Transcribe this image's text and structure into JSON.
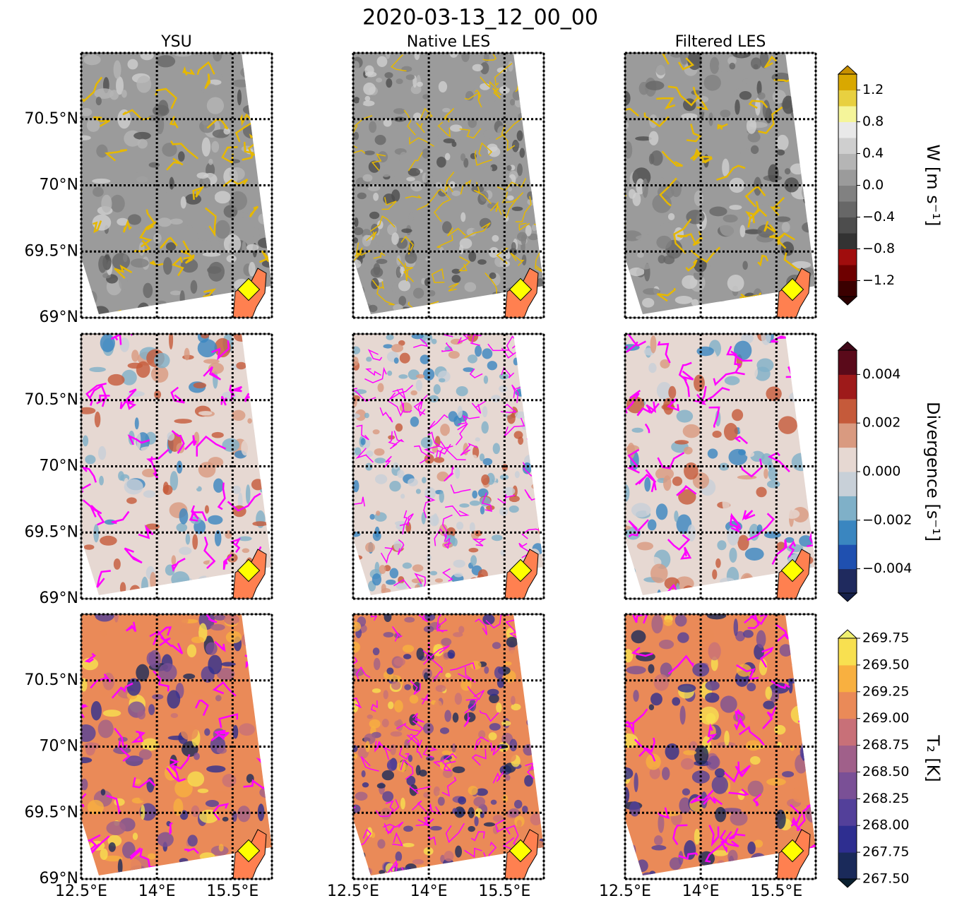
{
  "title": "2020-03-13_12_00_00",
  "columns": [
    "YSU",
    "Native LES",
    "Filtered LES"
  ],
  "map": {
    "xlim": [
      12.5,
      16.28
    ],
    "ylim": [
      69,
      71
    ],
    "xticks": [
      {
        "value": 12.5,
        "label": "12.5°E"
      },
      {
        "value": 14,
        "label": "14°E"
      },
      {
        "value": 15.5,
        "label": "15.5°E"
      }
    ],
    "yticks": [
      {
        "value": 69,
        "label": "69°N"
      },
      {
        "value": 69.5,
        "label": "69.5°N"
      },
      {
        "value": 70,
        "label": "70°N"
      },
      {
        "value": 70.5,
        "label": "70.5°N"
      }
    ]
  },
  "rows": [
    {
      "label": "W [m s⁻¹]",
      "lim": [
        -1.4,
        1.4
      ],
      "ticks": [
        {
          "value": -1.2,
          "label": "−1.2"
        },
        {
          "value": -0.8,
          "label": "−0.8"
        },
        {
          "value": -0.4,
          "label": "−0.4"
        },
        {
          "value": 0,
          "label": "0.0"
        },
        0.4,
        0.8,
        1.2
      ],
      "colors": [
        "#3b0000",
        "#6e0000",
        "#a00d0d",
        "#333333",
        "#4d4d4d",
        "#676767",
        "#818181",
        "#9b9b9b",
        "#b5b5b5",
        "#cfcfcf",
        "#e9e9e9",
        "#f5f59a",
        "#e8d040",
        "#d9a800"
      ],
      "extend_colors": [
        "#2a0000",
        "#c89000"
      ],
      "contour_color": "#e6b800"
    },
    {
      "label": "Divergence [s⁻¹]",
      "lim": [
        -0.005,
        0.005
      ],
      "ticks": [
        {
          "value": -0.004,
          "label": "−0.004"
        },
        {
          "value": -0.002,
          "label": "−0.002"
        },
        {
          "value": 0,
          "label": "0.000"
        },
        0.002,
        0.004
      ],
      "colors": [
        "#1f2a5e",
        "#1f50b0",
        "#3a86c0",
        "#7fb0c8",
        "#c8d0d8",
        "#e6d8d2",
        "#d99a80",
        "#c55a3a",
        "#9e1a1a",
        "#5a0a1a"
      ],
      "extend_colors": [
        "#15204a",
        "#400818"
      ],
      "contour_color": "#ff00ff"
    },
    {
      "label": "T₂ [K]",
      "lim": [
        267.5,
        269.75
      ],
      "ticks": [
        {
          "value": 267.5,
          "label": "267.50"
        },
        267.75,
        {
          "value": 268,
          "label": "268.00"
        },
        268.25,
        {
          "value": 268.5,
          "label": "268.50"
        },
        268.75,
        {
          "value": 269,
          "label": "269.00"
        },
        269.25,
        {
          "value": 269.5,
          "label": "269.50"
        },
        269.75
      ],
      "colors": [
        "#1a2a5a",
        "#2e2e90",
        "#53409a",
        "#7a5096",
        "#a0608a",
        "#c87078",
        "#ea8a58",
        "#f8b040",
        "#f8e050"
      ],
      "extend_colors": [
        "#0a2030",
        "#f0f070"
      ],
      "contour_color": "#ff00ff"
    }
  ]
}
